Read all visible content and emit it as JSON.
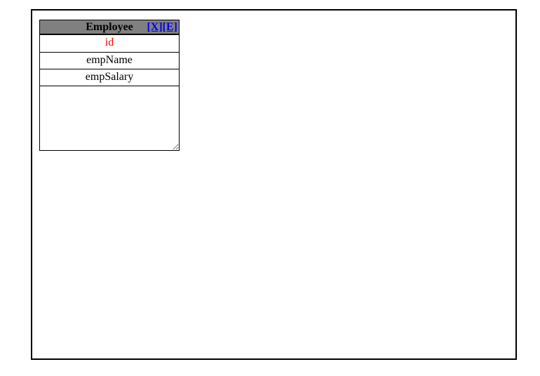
{
  "canvas": {
    "border_color": "#000000",
    "background": "#ffffff"
  },
  "entity": {
    "title": "Employee",
    "header_bg": "#808080",
    "link_color": "#0000ee",
    "actions": {
      "close": "[X]",
      "edit": "[E]"
    },
    "fields": [
      {
        "name": "id",
        "color": "#ff0000"
      },
      {
        "name": "empName",
        "color": "#000000"
      },
      {
        "name": "empSalary",
        "color": "#000000"
      }
    ]
  }
}
